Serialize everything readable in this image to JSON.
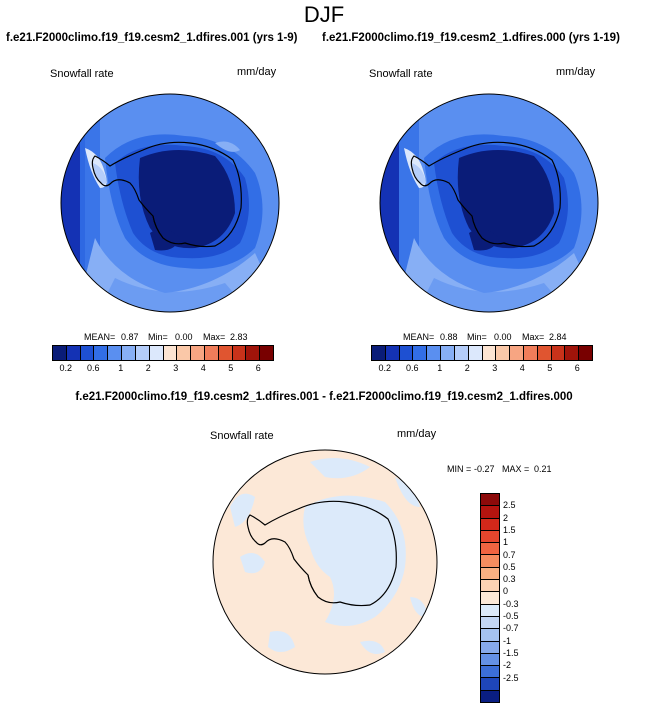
{
  "main_title": "DJF",
  "panels": [
    {
      "title": "f.e21.F2000climo.f19_f19.cesm2_1.dfires.001 (yrs 1-9)",
      "variable": "Snowfall rate",
      "units": "mm/day",
      "mean_label": "MEAN=",
      "mean": "0.87",
      "min_label": "Min=",
      "min": "0.00",
      "max_label": "Max=",
      "max": "2.83"
    },
    {
      "title": "f.e21.F2000climo.f19_f19.cesm2_1.dfires.000 (yrs 1-19)",
      "variable": "Snowfall rate",
      "units": "mm/day",
      "mean_label": "MEAN=",
      "mean": "0.88",
      "min_label": "Min=",
      "min": "0.00",
      "max_label": "Max=",
      "max": "2.84"
    }
  ],
  "abs_colorbar": {
    "colors": [
      "#0a1c78",
      "#1432b4",
      "#1e50d2",
      "#326ee6",
      "#5a8ff0",
      "#87aff5",
      "#b4cdfa",
      "#dce8fc",
      "#fce4d2",
      "#fac8a8",
      "#f7a582",
      "#f07d5a",
      "#e05530",
      "#c8321a",
      "#a0140a",
      "#780000"
    ],
    "ticks": [
      "0.2",
      "0.6",
      "1",
      "2",
      "3",
      "4",
      "5",
      "6"
    ]
  },
  "diff": {
    "title": "f.e21.F2000climo.f19_f19.cesm2_1.dfires.001 - f.e21.F2000climo.f19_f19.cesm2_1.dfires.000",
    "variable": "Snowfall rate",
    "units": "mm/day",
    "min_label": "MIN =",
    "min": "-0.27",
    "max_label": "MAX =",
    "max": "0.21"
  },
  "diff_colorbar": {
    "colors": [
      "#8c0a0a",
      "#b4140f",
      "#d2281a",
      "#e6462d",
      "#f06441",
      "#f58c5f",
      "#faaf82",
      "#fcd2b4",
      "#fce8d7",
      "#dceafa",
      "#c3d7f5",
      "#a5c3f0",
      "#87aaeb",
      "#6491e6",
      "#3c6ed7",
      "#1e46b9",
      "#0a1e82"
    ],
    "ticks": [
      "2.5",
      "2",
      "1.5",
      "1",
      "0.7",
      "0.5",
      "0.3",
      "0",
      "-0.3",
      "-0.5",
      "-0.7",
      "-1",
      "-1.5",
      "-2",
      "-2.5"
    ]
  }
}
